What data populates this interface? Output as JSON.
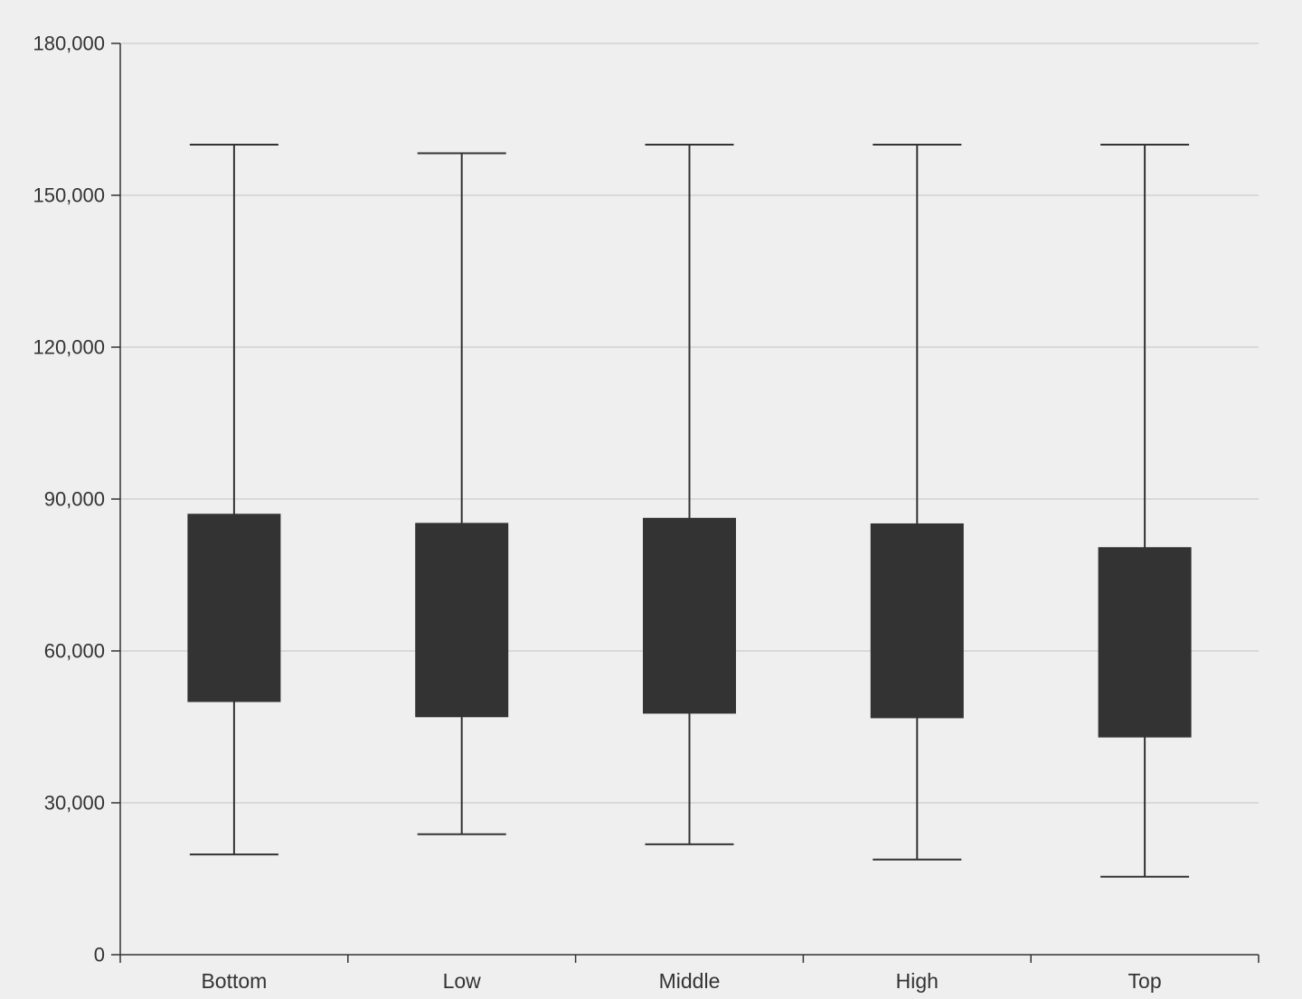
{
  "chart_data": {
    "type": "boxplot",
    "title": "",
    "xlabel": "",
    "ylabel": "",
    "categories": [
      "Bottom",
      "Low",
      "Middle",
      "High",
      "Top"
    ],
    "boxes": [
      {
        "category": "Bottom",
        "min": 19800,
        "q1": 50000,
        "q3": 87000,
        "max": 160000
      },
      {
        "category": "Low",
        "min": 23800,
        "q1": 47000,
        "q3": 85200,
        "max": 158300
      },
      {
        "category": "Middle",
        "min": 21800,
        "q1": 47700,
        "q3": 86200,
        "max": 160000
      },
      {
        "category": "High",
        "min": 18800,
        "q1": 46800,
        "q3": 85100,
        "max": 160000
      },
      {
        "category": "Top",
        "min": 15400,
        "q1": 43000,
        "q3": 80400,
        "max": 160000
      }
    ],
    "ylim": [
      0,
      180000
    ],
    "yticks": [
      0,
      30000,
      60000,
      90000,
      120000,
      150000,
      180000
    ],
    "ytick_labels": [
      "0",
      "30,000",
      "60,000",
      "90,000",
      "120,000",
      "150,000",
      "180,000"
    ],
    "grid": true,
    "colors": {
      "background": "#efefef",
      "box_fill": "#333333",
      "whisker": "#333333",
      "axis": "#333333",
      "grid": "#cccccc",
      "text": "#333333"
    }
  }
}
